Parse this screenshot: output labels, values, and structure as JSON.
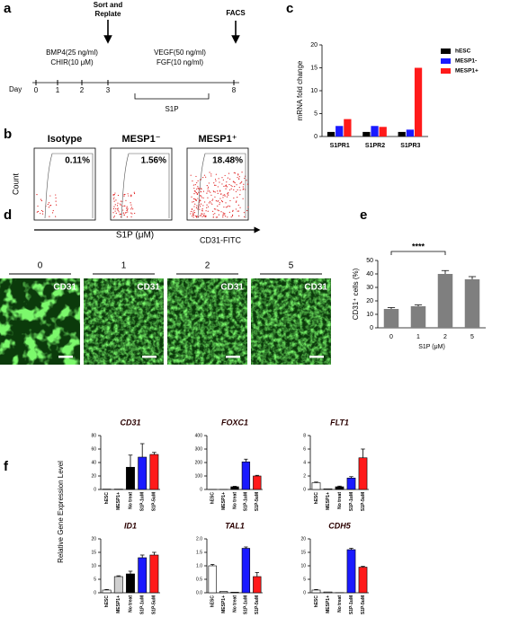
{
  "panels": [
    "a",
    "b",
    "c",
    "d",
    "e",
    "f"
  ],
  "timeline": {
    "day_label": "Day",
    "days": [
      "0",
      "1",
      "2",
      "3",
      "8"
    ],
    "stage1": [
      "BMP4(25 ng/ml)",
      "CHIR(10 μM)"
    ],
    "replate": [
      "Sort and",
      "Replate"
    ],
    "stage2": [
      "VEGF(50 ng/ml)",
      "FGF(10 ng/ml)"
    ],
    "s1p": "S1P",
    "facs": "FACS"
  },
  "flow": {
    "plots": [
      {
        "title": "Isotype",
        "percent": "0.11%"
      },
      {
        "title": "MESP1⁻",
        "percent": "1.56%"
      },
      {
        "title": "MESP1⁺",
        "percent": "18.48%"
      }
    ],
    "ylabel": "Count",
    "xlabel": "CD31-FITC"
  },
  "microscopy": {
    "title": "S1P (μM)",
    "concentrations": [
      "0",
      "1",
      "2",
      "5"
    ],
    "stains": [
      "CD31",
      "CD31",
      "CD31",
      "CD31"
    ]
  },
  "gene_expression_ylabel": "Relative Gene Expression Level",
  "chart_data": [
    {
      "type": "bar",
      "ylabel": "mRNA fold change",
      "categories": [
        "S1PR1",
        "S1PR2",
        "S1PR3"
      ],
      "series": [
        {
          "name": "hESC",
          "color": "#000000",
          "values": [
            1,
            1,
            1
          ]
        },
        {
          "name": "MESP1-",
          "color": "#1a1aff",
          "values": [
            2.3,
            2.3,
            1.5
          ]
        },
        {
          "name": "MESP1+",
          "color": "#ff1a1a",
          "values": [
            3.8,
            2.1,
            15
          ]
        }
      ],
      "ylim": [
        0,
        20
      ],
      "yticks": [
        0,
        5,
        10,
        15,
        20
      ],
      "legend": "right"
    },
    {
      "type": "bar",
      "ylabel": "CD31⁺ cells (%)",
      "xlabel": "S1P (μM)",
      "categories": [
        "0",
        "1",
        "2",
        "5"
      ],
      "values": [
        14,
        16,
        40,
        36
      ],
      "errors": [
        1,
        1,
        2.5,
        2
      ],
      "colors": [
        "#7f7f7f",
        "#7f7f7f",
        "#7f7f7f",
        "#7f7f7f"
      ],
      "ylim": [
        0,
        50
      ],
      "yticks": [
        0,
        10,
        20,
        30,
        40,
        50
      ],
      "annotation": "****"
    },
    {
      "type": "bar",
      "title": "CD31",
      "categories": [
        "hESC",
        "MESP1+",
        "No treat",
        "S1P-1uM",
        "S1P-5uM"
      ],
      "values": [
        0.5,
        0.5,
        33,
        48,
        52
      ],
      "errors": [
        0,
        0,
        18,
        20,
        3
      ],
      "colors": [
        "#ffffff",
        "#d0d0d0",
        "#000000",
        "#1a1aff",
        "#ff1a1a"
      ],
      "ylim": [
        0,
        80
      ],
      "yticks": [
        0,
        20,
        40,
        60,
        80
      ],
      "xtick_rotation": 90
    },
    {
      "type": "bar",
      "title": "FOXC1",
      "categories": [
        "hESC",
        "MESP1+",
        "No treat",
        "S1P-1uM",
        "S1P-5uM"
      ],
      "values": [
        0.5,
        0.5,
        20,
        205,
        100
      ],
      "errors": [
        0,
        0,
        3,
        20,
        5
      ],
      "colors": [
        "#ffffff",
        "#d0d0d0",
        "#000000",
        "#1a1aff",
        "#ff1a1a"
      ],
      "ylim": [
        0,
        400
      ],
      "yticks": [
        0,
        100,
        200,
        300,
        400
      ],
      "xtick_rotation": 90
    },
    {
      "type": "bar",
      "title": "FLT1",
      "categories": [
        "hESC",
        "MESP1+",
        "No treat",
        "S1P-1uM",
        "S1P-5uM"
      ],
      "values": [
        1.0,
        0.1,
        0.4,
        1.7,
        4.7
      ],
      "errors": [
        0.1,
        0,
        0.1,
        0.2,
        1.3
      ],
      "colors": [
        "#ffffff",
        "#d0d0d0",
        "#000000",
        "#1a1aff",
        "#ff1a1a"
      ],
      "ylim": [
        0,
        8
      ],
      "yticks": [
        0,
        2,
        4,
        6,
        8
      ],
      "xtick_rotation": 90
    },
    {
      "type": "bar",
      "title": "ID1",
      "categories": [
        "hESC",
        "MESP1+",
        "No treat",
        "S1P-1uM",
        "S1P-5uM"
      ],
      "values": [
        1,
        6,
        7,
        13,
        14
      ],
      "errors": [
        0.2,
        0.3,
        1,
        1,
        1
      ],
      "colors": [
        "#ffffff",
        "#d0d0d0",
        "#000000",
        "#1a1aff",
        "#ff1a1a"
      ],
      "ylim": [
        0,
        20
      ],
      "yticks": [
        0,
        5,
        10,
        15,
        20
      ],
      "xtick_rotation": 90
    },
    {
      "type": "bar",
      "title": "TAL1",
      "categories": [
        "hESC",
        "MESP1+",
        "No treat",
        "S1P-1uM",
        "S1P-5uM"
      ],
      "values": [
        1.0,
        0.05,
        0.02,
        1.65,
        0.6
      ],
      "errors": [
        0.05,
        0,
        0,
        0.05,
        0.15
      ],
      "colors": [
        "#ffffff",
        "#d0d0d0",
        "#000000",
        "#1a1aff",
        "#ff1a1a"
      ],
      "ylim": [
        0,
        2
      ],
      "yticks": [
        {
          "value": 0,
          "label": "0.0"
        },
        0.5,
        {
          "value": 1,
          "label": "1.0"
        },
        1.5,
        {
          "value": 2,
          "label": "2.0"
        }
      ],
      "xtick_rotation": 90
    },
    {
      "type": "bar",
      "title": "CDH5",
      "categories": [
        "hESC",
        "MESP1+",
        "No treat",
        "S1P-1uM",
        "S1P-5uM"
      ],
      "values": [
        1,
        0.3,
        0.05,
        16,
        9.5
      ],
      "errors": [
        0.2,
        0,
        0,
        0.5,
        0.3
      ],
      "colors": [
        "#ffffff",
        "#d0d0d0",
        "#000000",
        "#1a1aff",
        "#ff1a1a"
      ],
      "ylim": [
        0,
        20
      ],
      "yticks": [
        0,
        5,
        10,
        15,
        20
      ],
      "xtick_rotation": 90
    }
  ]
}
